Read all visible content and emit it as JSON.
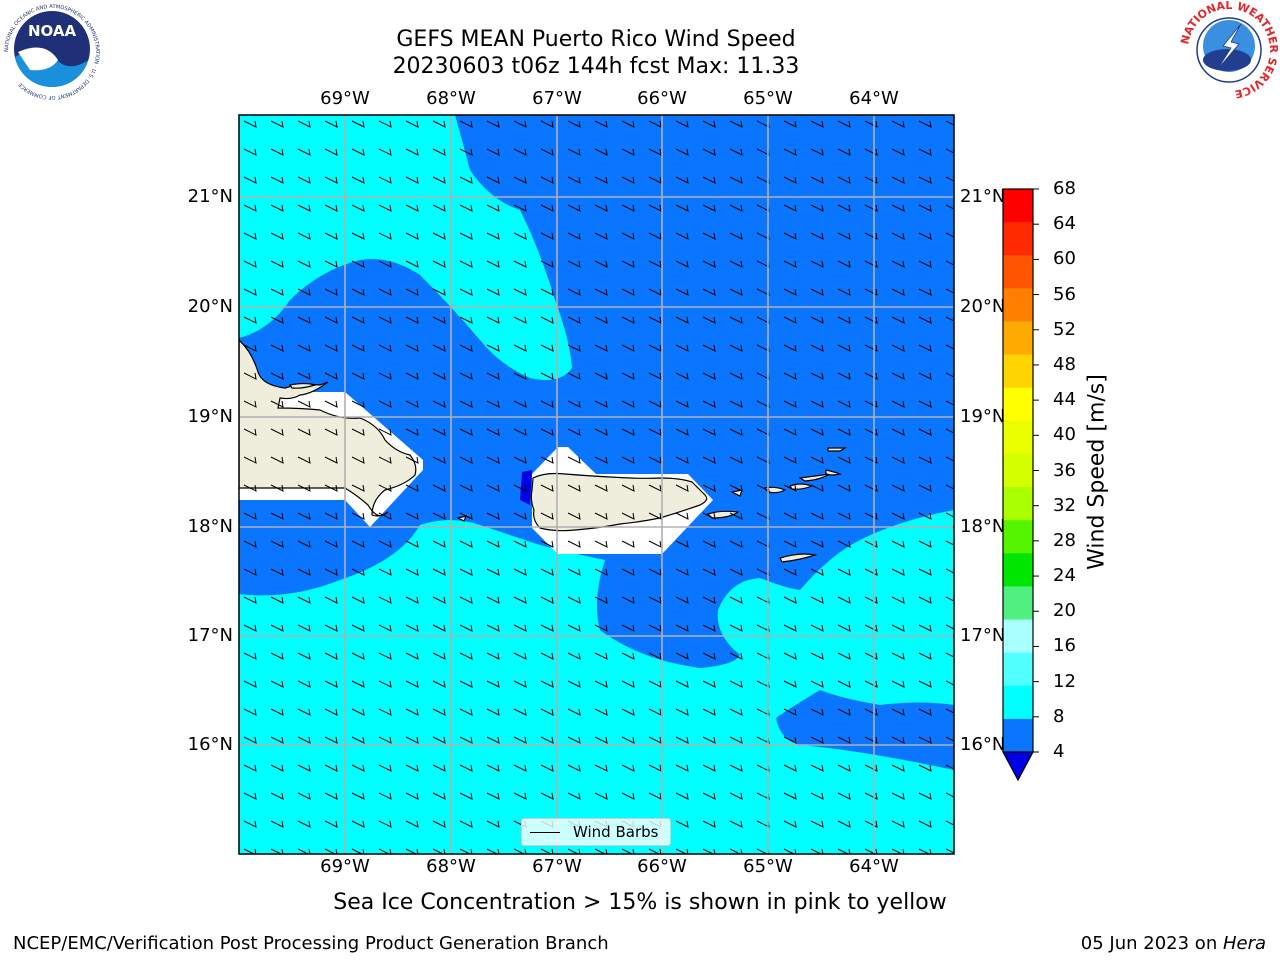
{
  "title": {
    "line1": "GEFS MEAN Puerto Rico Wind Speed",
    "line2": "20230603 t06z 144h fcst   Max: 11.33"
  },
  "map": {
    "lon_labels": [
      "69°W",
      "68°W",
      "67°W",
      "66°W",
      "65°W",
      "64°W"
    ],
    "lat_labels": [
      "21°N",
      "20°N",
      "19°N",
      "18°N",
      "17°N",
      "16°N"
    ],
    "legend_label": "Wind Barbs",
    "colors": {
      "land": "#EFEDDC",
      "wind_4_8": "#0A76FF",
      "wind_8_12": "#00FFFF",
      "wind_below_4": "#0000E6",
      "gridline": "#B0B0B0"
    }
  },
  "colorbar": {
    "title": "Wind Speed [m/s]",
    "ticks": [
      "68",
      "64",
      "60",
      "56",
      "52",
      "48",
      "44",
      "40",
      "36",
      "32",
      "28",
      "24",
      "20",
      "16",
      "12",
      "8",
      "4"
    ],
    "colors": [
      "#FF0000",
      "#FF2A00",
      "#FF5500",
      "#FF8000",
      "#FFAA00",
      "#FFD400",
      "#FFFF00",
      "#EAFF00",
      "#D4FF00",
      "#AAFF00",
      "#55F500",
      "#00E600",
      "#50F080",
      "#AAFFFF",
      "#50FFFF",
      "#00FFFF",
      "#0A76FF"
    ],
    "under_color": "#0000E6"
  },
  "subtitle": "Sea Ice Concentration > 15% is shown in pink to yellow",
  "footer": {
    "left": "NCEP/EMC/Verification Post Processing Product Generation Branch",
    "right_date": "05 Jun 2023 on ",
    "right_host": "Hera"
  },
  "logos": {
    "noaa_text": "NOAA",
    "noaa_ring": "NATIONAL OCEANIC AND ATMOSPHERIC ADMINISTRATION · U.S. DEPARTMENT OF COMMERCE",
    "nws_ring": "NATIONAL WEATHER SERVICE"
  }
}
